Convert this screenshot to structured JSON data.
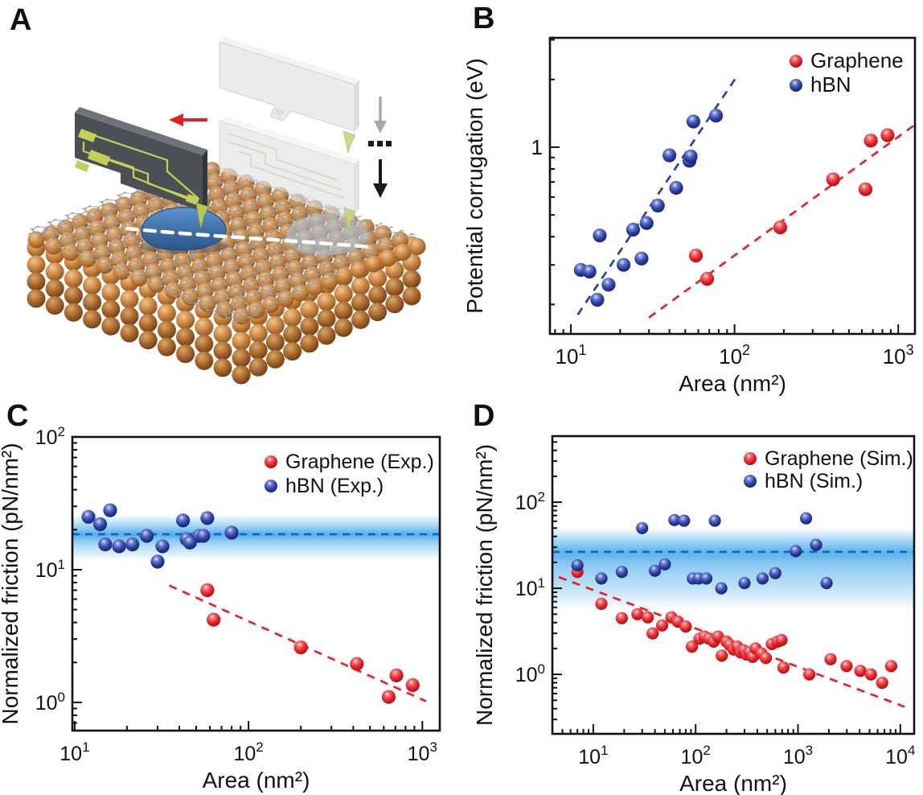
{
  "figure": {
    "panel_labels": {
      "A": "A",
      "B": "B",
      "C": "C",
      "D": "D"
    }
  },
  "illustration": {
    "icons": [
      "red-left-arrow",
      "gray-down-arrow",
      "ellipsis-dots",
      "black-down-arrow",
      "afm-tip"
    ],
    "colors": {
      "copper": "#c98440",
      "copper_dark": "#a8662c",
      "graphene": "#98a1a7",
      "flake_blue": "#3d6ea8",
      "flake_ghost": "#a9c6e0",
      "cantilever_body": "#4b5055",
      "cantilever_trace": "#c3cf57",
      "ghost_body": "#e3e6e7",
      "tip": "#b9c659",
      "arrow_red": "#e02128",
      "arrow_gray": "#a8a8a8",
      "arrow_black": "#1a1a1a",
      "scan_line": "#ffffff"
    }
  },
  "chart_data": [
    {
      "id": "B",
      "type": "scatter",
      "xscale": "log",
      "yscale": "log",
      "xlabel": "Area (nm²)",
      "ylabel": "Potential corrugation (eV)",
      "xlim": [
        7.45,
        1265
      ],
      "ylim": [
        0.148,
        3.06
      ],
      "x_ticks": [
        {
          "v": 10,
          "base": "10",
          "exp": "1"
        },
        {
          "v": 100,
          "base": "10",
          "exp": "2"
        },
        {
          "v": 1000,
          "base": "10",
          "exp": "3"
        }
      ],
      "y_ticks": [
        {
          "v": 1,
          "base": "1",
          "exp": ""
        }
      ],
      "legend": [
        {
          "label": "Graphene",
          "series": "graphene"
        },
        {
          "label": "hBN",
          "series": "hbn"
        }
      ],
      "series": [
        {
          "name": "graphene",
          "label": "Graphene",
          "color": "#e52228",
          "dark": "#9c0e12",
          "mid": "#f06a6e",
          "light": "#ffdede",
          "points": [
            [
              58,
              0.33
            ],
            [
              68,
              0.26
            ],
            [
              190,
              0.44
            ],
            [
              400,
              0.72
            ],
            [
              630,
              0.65
            ],
            [
              680,
              1.07
            ],
            [
              860,
              1.13
            ]
          ]
        },
        {
          "name": "hbn",
          "label": "hBN",
          "color": "#2a41a4",
          "dark": "#141f60",
          "mid": "#6f7fd0",
          "light": "#dde4fa",
          "points": [
            [
              11.5,
              0.285
            ],
            [
              13,
              0.28
            ],
            [
              14.5,
              0.21
            ],
            [
              15,
              0.405
            ],
            [
              17,
              0.245
            ],
            [
              21,
              0.3
            ],
            [
              24,
              0.43
            ],
            [
              27,
              0.32
            ],
            [
              29,
              0.46
            ],
            [
              34,
              0.55
            ],
            [
              40,
              0.92
            ],
            [
              44,
              0.66
            ],
            [
              53,
              0.87
            ],
            [
              54,
              0.91
            ],
            [
              56,
              1.3
            ],
            [
              77,
              1.38
            ]
          ]
        }
      ],
      "trend_lines": [
        {
          "series": "hbn",
          "from": [
            11,
            0.18
          ],
          "to": [
            105,
            2.1
          ]
        },
        {
          "series": "graphene",
          "from": [
            30,
            0.175
          ],
          "to": [
            1250,
            1.25
          ]
        }
      ],
      "band": null
    },
    {
      "id": "C",
      "type": "scatter",
      "xscale": "log",
      "yscale": "log",
      "xlabel": "Area (nm²)",
      "ylabel": "Normalized friction (pN/nm²)",
      "xlim": [
        9.7,
        1260
      ],
      "ylim": [
        0.613,
        100
      ],
      "x_ticks": [
        {
          "v": 10,
          "base": "10",
          "exp": "1"
        },
        {
          "v": 100,
          "base": "10",
          "exp": "2"
        },
        {
          "v": 1000,
          "base": "10",
          "exp": "3"
        }
      ],
      "y_ticks": [
        {
          "v": 1,
          "base": "10",
          "exp": "0"
        },
        {
          "v": 10,
          "base": "10",
          "exp": "1"
        },
        {
          "v": 100,
          "base": "10",
          "exp": "2"
        }
      ],
      "legend": [
        {
          "label": "Graphene (Exp.)",
          "series": "graphene"
        },
        {
          "label": "hBN (Exp.)",
          "series": "hbn"
        }
      ],
      "series": [
        {
          "name": "graphene",
          "label": "Graphene (Exp.)",
          "color": "#e52228",
          "dark": "#9c0e12",
          "mid": "#f06a6e",
          "light": "#ffdede",
          "points": [
            [
              58,
              7
            ],
            [
              63,
              4.2
            ],
            [
              200,
              2.6
            ],
            [
              420,
              1.95
            ],
            [
              640,
              1.1
            ],
            [
              710,
              1.6
            ],
            [
              880,
              1.35
            ]
          ]
        },
        {
          "name": "hbn",
          "label": "hBN (Exp.)",
          "color": "#2a41a4",
          "dark": "#141f60",
          "mid": "#6f7fd0",
          "light": "#dde4fa",
          "points": [
            [
              12,
              25
            ],
            [
              14,
              22
            ],
            [
              16,
              28
            ],
            [
              15,
              15.5
            ],
            [
              18,
              15
            ],
            [
              21.5,
              15.5
            ],
            [
              26,
              18
            ],
            [
              30,
              11.5
            ],
            [
              32,
              15
            ],
            [
              42,
              23.5
            ],
            [
              44,
              17
            ],
            [
              46,
              16
            ],
            [
              52,
              18
            ],
            [
              55,
              18
            ],
            [
              58,
              24.5
            ],
            [
              80,
              19
            ]
          ]
        }
      ],
      "trend_lines": [
        {
          "series": "graphene",
          "from": [
            35,
            7.6
          ],
          "to": [
            1050,
            1.02
          ]
        }
      ],
      "band": {
        "center": 18.5,
        "lo": 11.8,
        "hi": 26,
        "color": "#2f9fe8",
        "line_color": "#1f5fc4"
      }
    },
    {
      "id": "D",
      "type": "scatter",
      "xscale": "log",
      "yscale": "log",
      "xlabel": "Area (nm²)",
      "ylabel": "Normalized friction (pN/nm²)",
      "xlim": [
        3.98,
        13640
      ],
      "ylim": [
        0.204,
        585
      ],
      "x_ticks": [
        {
          "v": 10,
          "base": "10",
          "exp": "1"
        },
        {
          "v": 100,
          "base": "10",
          "exp": "2"
        },
        {
          "v": 1000,
          "base": "10",
          "exp": "3"
        },
        {
          "v": 10000,
          "base": "10",
          "exp": "4"
        }
      ],
      "y_ticks": [
        {
          "v": 1,
          "base": "10",
          "exp": "0"
        },
        {
          "v": 10,
          "base": "10",
          "exp": "1"
        },
        {
          "v": 100,
          "base": "10",
          "exp": "2"
        }
      ],
      "legend": [
        {
          "label": "Graphene (Sim.)",
          "series": "graphene"
        },
        {
          "label": "hBN (Sim.)",
          "series": "hbn"
        }
      ],
      "series": [
        {
          "name": "graphene",
          "label": "Graphene (Sim.)",
          "color": "#e52228",
          "dark": "#9c0e12",
          "mid": "#f06a6e",
          "light": "#ffdede",
          "points": [
            [
              7,
              15.5
            ],
            [
              12,
              6.6
            ],
            [
              19,
              4.5
            ],
            [
              27,
              5.0
            ],
            [
              34,
              4.6
            ],
            [
              38,
              3.0
            ],
            [
              47,
              3.7
            ],
            [
              58,
              4.6
            ],
            [
              67,
              4.1
            ],
            [
              80,
              3.6
            ],
            [
              92,
              2.1
            ],
            [
              109,
              2.6
            ],
            [
              122,
              2.75
            ],
            [
              135,
              2.6
            ],
            [
              150,
              2.4
            ],
            [
              165,
              2.75
            ],
            [
              180,
              1.65
            ],
            [
              200,
              2.4
            ],
            [
              215,
              2.2
            ],
            [
              235,
              1.95
            ],
            [
              255,
              2.1
            ],
            [
              275,
              1.8
            ],
            [
              295,
              1.9
            ],
            [
              315,
              1.7
            ],
            [
              335,
              1.8
            ],
            [
              360,
              1.6
            ],
            [
              385,
              2.0
            ],
            [
              440,
              1.75
            ],
            [
              485,
              1.55
            ],
            [
              555,
              2.25
            ],
            [
              630,
              2.4
            ],
            [
              690,
              2.5
            ],
            [
              720,
              1.2
            ],
            [
              1290,
              1.0
            ],
            [
              2080,
              1.5
            ],
            [
              2980,
              1.25
            ],
            [
              4070,
              1.1
            ],
            [
              5150,
              1.0
            ],
            [
              6640,
              0.8
            ],
            [
              8130,
              1.25
            ]
          ]
        },
        {
          "name": "hbn",
          "label": "hBN (Sim.)",
          "color": "#2a41a4",
          "dark": "#141f60",
          "mid": "#6f7fd0",
          "light": "#dde4fa",
          "points": [
            [
              7,
              18.5
            ],
            [
              12,
              13
            ],
            [
              19,
              15.5
            ],
            [
              30,
              50
            ],
            [
              40,
              16
            ],
            [
              50,
              19
            ],
            [
              62,
              62
            ],
            [
              77,
              61
            ],
            [
              94,
              13
            ],
            [
              107,
              13
            ],
            [
              127,
              13
            ],
            [
              154,
              61
            ],
            [
              178,
              10
            ],
            [
              300,
              11.5
            ],
            [
              450,
              13
            ],
            [
              600,
              15
            ],
            [
              950,
              27
            ],
            [
              1200,
              65
            ],
            [
              1500,
              32
            ],
            [
              1900,
              11.5
            ]
          ]
        }
      ],
      "trend_lines": [
        {
          "series": "graphene",
          "from": [
            4.6,
            13.5
          ],
          "to": [
            11000,
            0.42
          ]
        }
      ],
      "band": {
        "center": 26.5,
        "lo": 5.5,
        "hi": 50,
        "color": "#2f9fe8",
        "line_color": "#1f5fc4"
      }
    }
  ]
}
